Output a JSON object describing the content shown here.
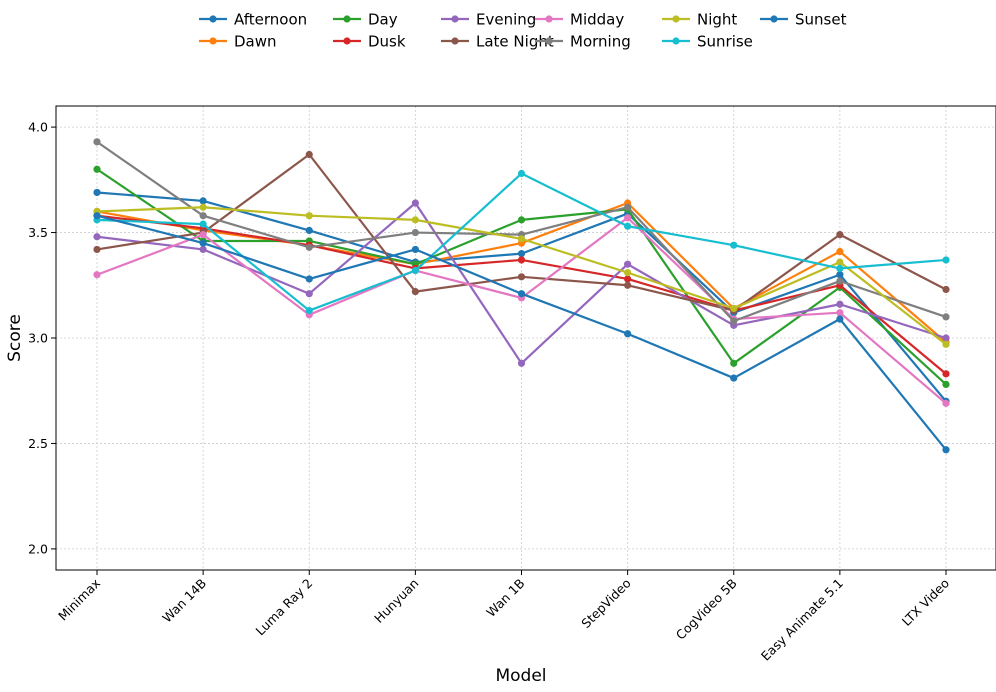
{
  "chart_data": {
    "type": "line",
    "title": "",
    "xlabel": "Model",
    "ylabel": "Score",
    "categories": [
      "Minimax",
      "Wan 14B",
      "Luma Ray 2",
      "Hunyuan",
      "Wan 1B",
      "StepVideo",
      "CogVideo 5B",
      "Easy Animate 5.1",
      "LTX Video"
    ],
    "ylim": [
      1.9,
      4.1
    ],
    "yticks": [
      "2.0",
      "2.5",
      "3.0",
      "3.5",
      "4.0"
    ],
    "ytick_values": [
      2.0,
      2.5,
      3.0,
      3.5,
      4.0
    ],
    "grid": true,
    "legend_position": "top-center",
    "series": [
      {
        "name": "Afternoon",
        "color": "#1f77b4",
        "values": [
          3.69,
          3.65,
          3.51,
          3.36,
          3.4,
          3.59,
          3.12,
          3.3,
          2.7
        ]
      },
      {
        "name": "Dawn",
        "color": "#ff7f0e",
        "values": [
          3.6,
          3.51,
          3.44,
          3.35,
          3.45,
          3.64,
          3.14,
          3.41,
          2.98
        ]
      },
      {
        "name": "Day",
        "color": "#2ca02c",
        "values": [
          3.8,
          3.46,
          3.46,
          3.35,
          3.56,
          3.61,
          2.88,
          3.24,
          2.78
        ]
      },
      {
        "name": "Dusk",
        "color": "#d62728",
        "values": [
          3.58,
          3.52,
          3.44,
          3.33,
          3.37,
          3.28,
          3.13,
          3.25,
          2.83
        ]
      },
      {
        "name": "Evening",
        "color": "#9467bd",
        "values": [
          3.48,
          3.42,
          3.21,
          3.64,
          2.88,
          3.35,
          3.06,
          3.16,
          3.0
        ]
      },
      {
        "name": "Late Night",
        "color": "#8c564b",
        "values": [
          3.42,
          3.5,
          3.87,
          3.22,
          3.29,
          3.25,
          3.13,
          3.49,
          3.23
        ]
      },
      {
        "name": "Midday",
        "color": "#e377c2",
        "values": [
          3.3,
          3.49,
          3.11,
          3.32,
          3.19,
          3.57,
          3.09,
          3.12,
          2.69
        ]
      },
      {
        "name": "Morning",
        "color": "#7f7f7f",
        "values": [
          3.93,
          3.58,
          3.43,
          3.5,
          3.49,
          3.62,
          3.08,
          3.27,
          3.1
        ]
      },
      {
        "name": "Night",
        "color": "#bcbd22",
        "values": [
          3.6,
          3.62,
          3.58,
          3.56,
          3.47,
          3.31,
          3.14,
          3.36,
          2.97
        ]
      },
      {
        "name": "Sunrise",
        "color": "#17becf",
        "values": [
          3.56,
          3.54,
          3.13,
          3.32,
          3.78,
          3.53,
          3.44,
          3.33,
          3.37
        ]
      },
      {
        "name": "Sunset",
        "color": "#1f77b4",
        "values": [
          3.58,
          3.45,
          3.28,
          3.42,
          3.21,
          3.02,
          2.81,
          3.09,
          2.47
        ]
      }
    ]
  }
}
